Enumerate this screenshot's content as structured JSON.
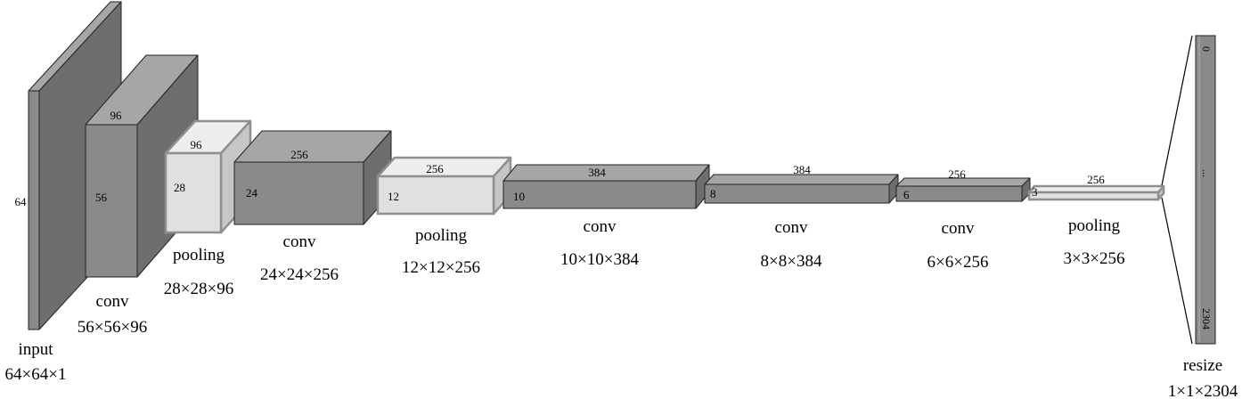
{
  "layers": [
    {
      "id": "input",
      "name": "input",
      "shape": "64×64×1",
      "width": 64,
      "depth": 1,
      "kind": "input"
    },
    {
      "id": "conv1",
      "name": "conv",
      "shape": "56×56×96",
      "width": 56,
      "depth": 96,
      "kind": "conv"
    },
    {
      "id": "pool1",
      "name": "pooling",
      "shape": "28×28×96",
      "width": 28,
      "depth": 96,
      "kind": "pooling"
    },
    {
      "id": "conv2",
      "name": "conv",
      "shape": "24×24×256",
      "width": 24,
      "depth": 256,
      "kind": "conv"
    },
    {
      "id": "pool2",
      "name": "pooling",
      "shape": "12×12×256",
      "width": 12,
      "depth": 256,
      "kind": "pooling"
    },
    {
      "id": "conv3",
      "name": "conv",
      "shape": "10×10×384",
      "width": 10,
      "depth": 384,
      "kind": "conv"
    },
    {
      "id": "conv4",
      "name": "conv",
      "shape": "8×8×384",
      "width": 8,
      "depth": 384,
      "kind": "conv"
    },
    {
      "id": "conv5",
      "name": "conv",
      "shape": "6×6×256",
      "width": 6,
      "depth": 256,
      "kind": "conv"
    },
    {
      "id": "pool3",
      "name": "pooling",
      "shape": "3×3×256",
      "width": 3,
      "depth": 256,
      "kind": "pooling"
    }
  ],
  "output": {
    "name": "resize",
    "shape": "1×1×2304",
    "index_start": "0",
    "index_mid": "...",
    "index_end": "2304"
  },
  "colors": {
    "conv_front": "#8a8a8a",
    "conv_top": "#a6a6a6",
    "conv_side": "#6e6e6e",
    "pool_front": "#e0e0e0",
    "pool_top": "#eeeeee",
    "pool_side": "#c6c6c6",
    "pool_stroke": "#8f8f8f",
    "edge": "#222222"
  }
}
